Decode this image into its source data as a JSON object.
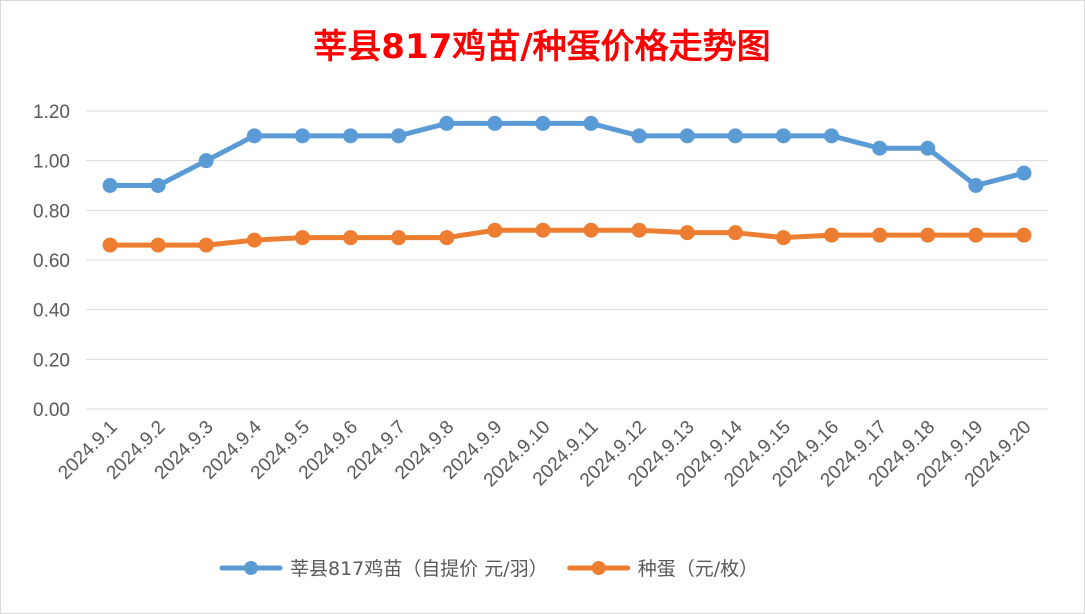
{
  "chart_data": {
    "type": "line",
    "title": "莘县817鸡苗/种蛋价格走势图",
    "categories": [
      "2024.9.1",
      "2024.9.2",
      "2024.9.3",
      "2024.9.4",
      "2024.9.5",
      "2024.9.6",
      "2024.9.7",
      "2024.9.8",
      "2024.9.9",
      "2024.9.10",
      "2024.9.11",
      "2024.9.12",
      "2024.9.13",
      "2024.9.14",
      "2024.9.15",
      "2024.9.16",
      "2024.9.17",
      "2024.9.18",
      "2024.9.19",
      "2024.9.20"
    ],
    "series": [
      {
        "name": "莘县817鸡苗（自提价 元/羽）",
        "color": "#5b9bd5",
        "values": [
          0.9,
          0.9,
          1.0,
          1.1,
          1.1,
          1.1,
          1.1,
          1.15,
          1.15,
          1.15,
          1.15,
          1.1,
          1.1,
          1.1,
          1.1,
          1.1,
          1.05,
          1.05,
          0.9,
          0.95
        ]
      },
      {
        "name": "种蛋（元/枚）",
        "color": "#ed7d31",
        "values": [
          0.66,
          0.66,
          0.66,
          0.68,
          0.69,
          0.69,
          0.69,
          0.69,
          0.72,
          0.72,
          0.72,
          0.72,
          0.71,
          0.71,
          0.69,
          0.7,
          0.7,
          0.7,
          0.7,
          0.7
        ]
      }
    ],
    "yticks": [
      "0.00",
      "0.20",
      "0.40",
      "0.60",
      "0.80",
      "1.00",
      "1.20"
    ],
    "ylim": [
      0,
      1.2
    ],
    "grid": true,
    "legend_position": "bottom"
  }
}
